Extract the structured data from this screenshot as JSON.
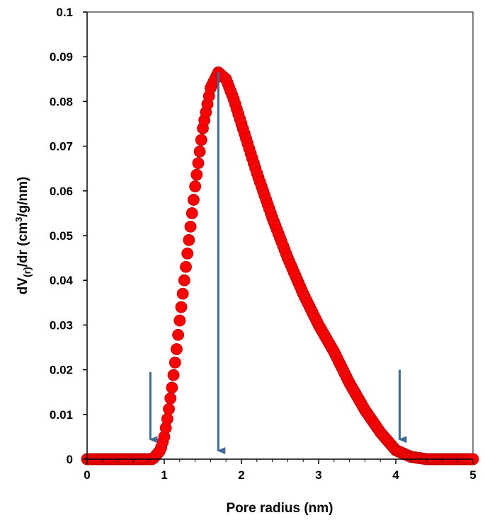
{
  "chart_data": {
    "type": "scatter",
    "title": "",
    "xlabel": "Pore radius (nm)",
    "ylabel": {
      "prefix": "dV",
      "subscript": "(r)",
      "middle": "/dr (cm",
      "superscript": "3",
      "suffix": "/g/nm)"
    },
    "xlim": [
      0,
      5
    ],
    "ylim": [
      0,
      0.1
    ],
    "x_ticks": [
      "0",
      "1",
      "2",
      "3",
      "4",
      "5"
    ],
    "y_ticks": [
      "0",
      "0.01",
      "0.02",
      "0.03",
      "0.04",
      "0.05",
      "0.06",
      "0.07",
      "0.08",
      "0.09",
      "0.1"
    ],
    "x_minor_step": 0.2,
    "grid": false,
    "legend": "none",
    "series": [
      {
        "marker": "circle",
        "color": "#ff0000",
        "points": [
          [
            0.0,
            0.0
          ],
          [
            0.85,
            0.0
          ],
          [
            0.95,
            0.002
          ],
          [
            1.0,
            0.005
          ],
          [
            1.05,
            0.01
          ],
          [
            1.1,
            0.016
          ],
          [
            1.15,
            0.023
          ],
          [
            1.2,
            0.031
          ],
          [
            1.3,
            0.046
          ],
          [
            1.4,
            0.061
          ],
          [
            1.5,
            0.074
          ],
          [
            1.6,
            0.083
          ],
          [
            1.7,
            0.0865
          ],
          [
            1.8,
            0.085
          ],
          [
            1.9,
            0.0805
          ],
          [
            2.0,
            0.075
          ],
          [
            2.2,
            0.064
          ],
          [
            2.4,
            0.054
          ],
          [
            2.6,
            0.045
          ],
          [
            2.8,
            0.037
          ],
          [
            3.0,
            0.03
          ],
          [
            3.2,
            0.024
          ],
          [
            3.4,
            0.017
          ],
          [
            3.6,
            0.011
          ],
          [
            3.8,
            0.006
          ],
          [
            4.0,
            0.002
          ],
          [
            4.2,
            0.0005
          ],
          [
            4.4,
            0.0
          ],
          [
            5.0,
            0.0
          ]
        ]
      }
    ],
    "annotations": [
      {
        "type": "arrow",
        "x": 0.82,
        "y_from": 0.0195,
        "y_to": 0.0025,
        "color": "#3e6a99"
      },
      {
        "type": "arrow",
        "x": 1.7,
        "y_from": 0.0865,
        "y_to": 0.0,
        "color": "#3e6a99"
      },
      {
        "type": "arrow",
        "x": 4.05,
        "y_from": 0.02,
        "y_to": 0.0025,
        "color": "#3e6a99"
      }
    ]
  }
}
